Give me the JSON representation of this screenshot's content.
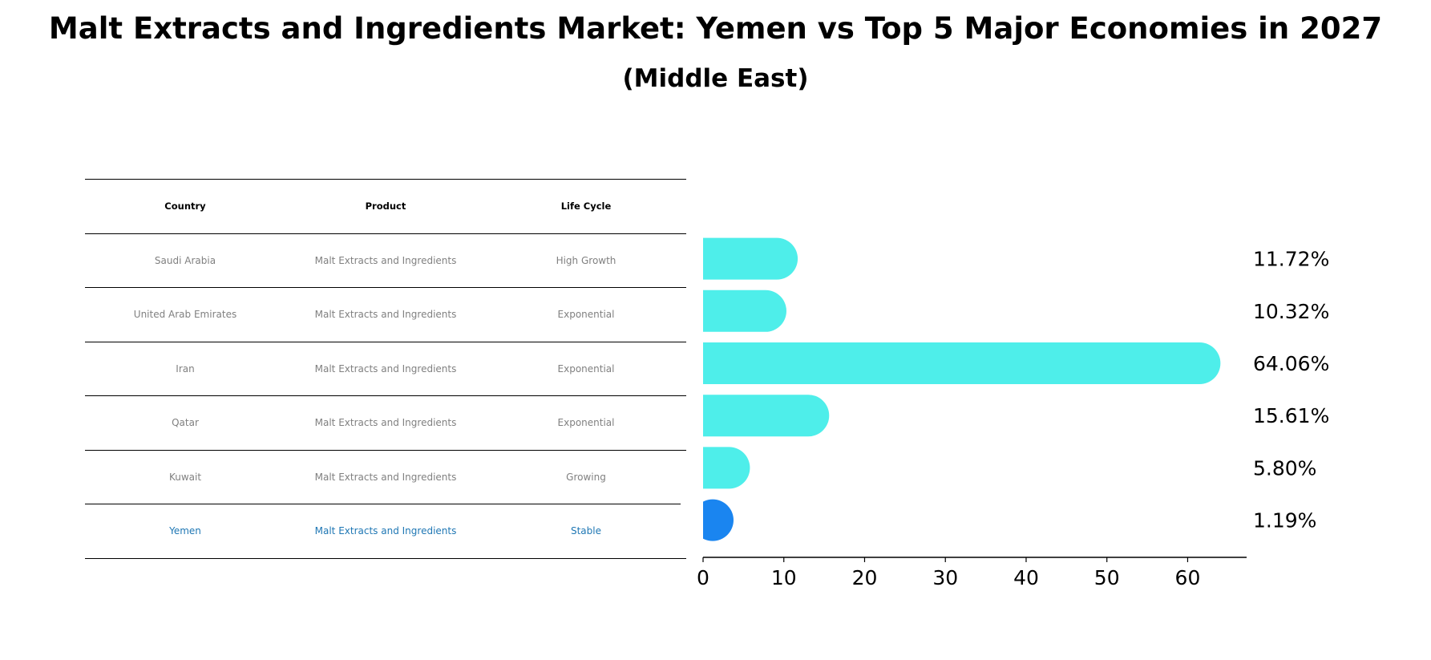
{
  "title": "Malt Extracts and Ingredients Market: Yemen vs Top 5 Major Economies in 2027",
  "subtitle": "(Middle East)",
  "table": {
    "headers": [
      "Country",
      "Product",
      "Life Cycle"
    ],
    "rows": [
      {
        "country": "Saudi Arabia",
        "product": "Malt Extracts and Ingredients",
        "life_cycle": "High Growth"
      },
      {
        "country": "United Arab Emirates",
        "product": "Malt Extracts and Ingredients",
        "life_cycle": "Exponential"
      },
      {
        "country": "Iran",
        "product": "Malt Extracts and Ingredients",
        "life_cycle": "Exponential"
      },
      {
        "country": "Qatar",
        "product": "Malt Extracts and Ingredients",
        "life_cycle": "Exponential"
      },
      {
        "country": "Kuwait",
        "product": "Malt Extracts and Ingredients",
        "life_cycle": "Growing"
      },
      {
        "country": "Yemen",
        "product": "Malt Extracts and Ingredients",
        "life_cycle": "Stable"
      }
    ]
  },
  "colors": {
    "bar": "#4eeeea",
    "highlight_bar": "#1a85f0",
    "highlight_text": "#1f77b4",
    "text_muted": "#808080"
  },
  "chart_data": {
    "type": "bar",
    "orientation": "horizontal",
    "categories": [
      "Saudi Arabia",
      "United Arab Emirates",
      "Iran",
      "Qatar",
      "Kuwait",
      "Yemen"
    ],
    "values": [
      11.72,
      10.32,
      64.06,
      15.61,
      5.8,
      1.19
    ],
    "value_labels": [
      "11.72%",
      "10.32%",
      "64.06%",
      "15.61%",
      "5.80%",
      "1.19%"
    ],
    "highlight": "Yemen",
    "xlim": [
      0,
      67.3
    ],
    "xticks": [
      0,
      10,
      20,
      30,
      40,
      50,
      60
    ],
    "xlabel": "",
    "ylabel": "",
    "grid": false
  }
}
